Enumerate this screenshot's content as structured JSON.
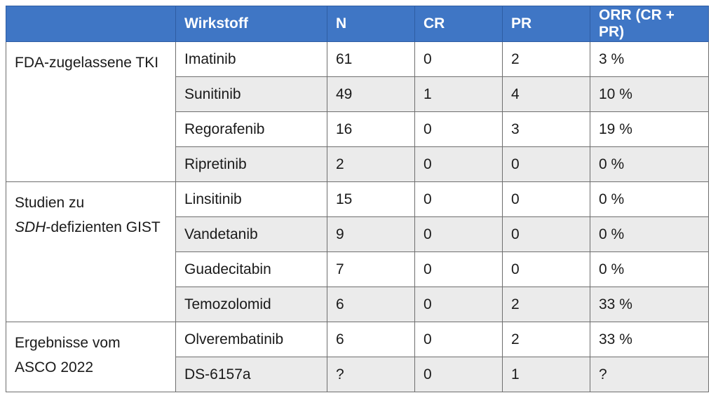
{
  "header": {
    "col0": "",
    "col1": "Wirkstoff",
    "col2": "N",
    "col3": "CR",
    "col4": "PR",
    "col5": "ORR (CR + PR)"
  },
  "groups": [
    {
      "label_line1": "FDA-zugelassene TKI",
      "rows": [
        {
          "drug": "Imatinib",
          "n": "61",
          "cr": "0",
          "pr": "2",
          "orr": "3 %"
        },
        {
          "drug": "Sunitinib",
          "n": "49",
          "cr": "1",
          "pr": "4",
          "orr": "10 %"
        },
        {
          "drug": "Regorafenib",
          "n": "16",
          "cr": "0",
          "pr": "3",
          "orr": "19 %"
        },
        {
          "drug": "Ripretinib",
          "n": "2",
          "cr": "0",
          "pr": "0",
          "orr": "0 %"
        }
      ]
    },
    {
      "label_line1": "Studien zu",
      "label_line2_italic": "SDH",
      "label_line2_rest": "-defizienten GIST",
      "rows": [
        {
          "drug": "Linsitinib",
          "n": "15",
          "cr": "0",
          "pr": "0",
          "orr": "0 %"
        },
        {
          "drug": "Vandetanib",
          "n": "9",
          "cr": "0",
          "pr": "0",
          "orr": "0 %"
        },
        {
          "drug": "Guadecitabin",
          "n": "7",
          "cr": "0",
          "pr": "0",
          "orr": "0 %"
        },
        {
          "drug": "Temozolomid",
          "n": "6",
          "cr": "0",
          "pr": "2",
          "orr": "33 %"
        }
      ]
    },
    {
      "label_line1": "Ergebnisse vom",
      "label_line2": "ASCO 2022",
      "rows": [
        {
          "drug": "Olverembatinib",
          "n": "6",
          "cr": "0",
          "pr": "2",
          "orr": "33 %"
        },
        {
          "drug": "DS-6157a",
          "n": "?",
          "cr": "0",
          "pr": "1",
          "orr": "?"
        }
      ]
    }
  ],
  "colors": {
    "header_bg": "#3f76c5",
    "header_text": "#ffffff",
    "row_shade": "#ebebeb",
    "border": "#6e6e6e"
  }
}
